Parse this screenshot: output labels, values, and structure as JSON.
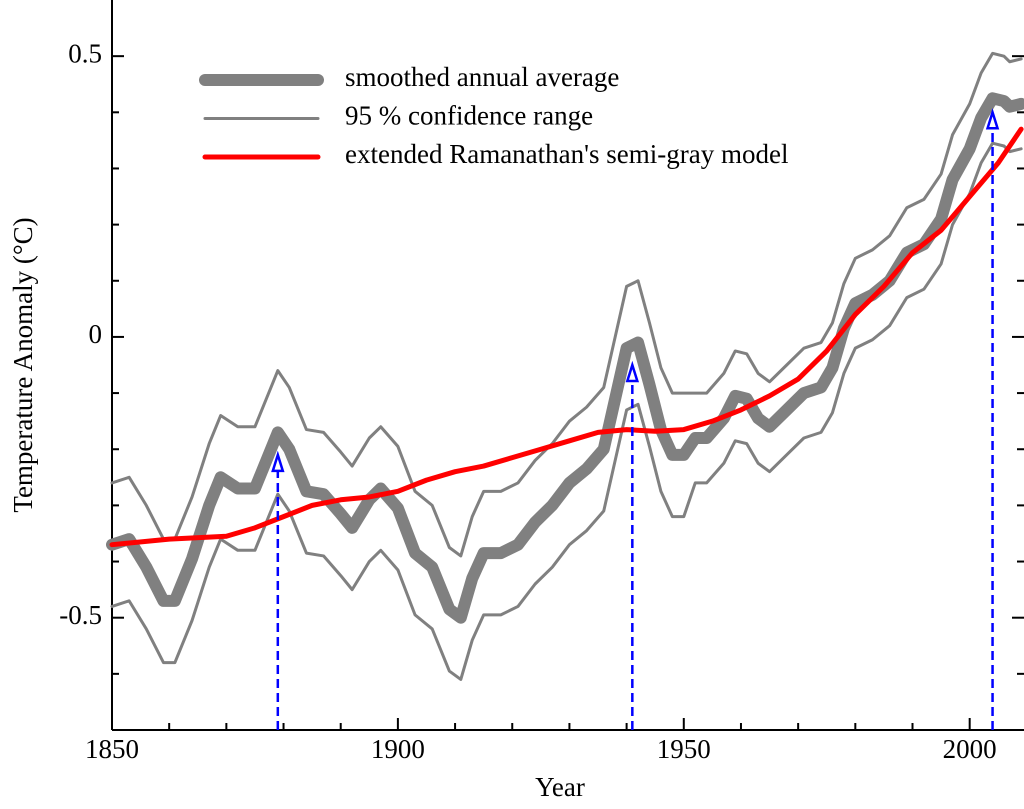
{
  "chart_data": {
    "type": "line",
    "xlabel": "Year",
    "ylabel": "Temperature Anomaly (°C)",
    "xlim": [
      1850,
      2009.5
    ],
    "ylim": [
      -0.7,
      0.6
    ],
    "xticks": [
      1850,
      1900,
      1950,
      2000
    ],
    "yticks": [
      -0.5,
      0,
      0.5
    ],
    "xminor_ticks": [
      1860,
      1870,
      1880,
      1890,
      1910,
      1920,
      1930,
      1940,
      1960,
      1970,
      1980,
      1990
    ],
    "yminor_ticks": [
      -0.6,
      -0.4,
      -0.3,
      -0.2,
      -0.1,
      0.1,
      0.2,
      0.3,
      0.4
    ],
    "series": [
      {
        "name": "smoothed annual average",
        "color": "#808080",
        "width": 12,
        "x": [
          1850,
          1853,
          1856,
          1859,
          1861,
          1864,
          1867,
          1869,
          1872,
          1875,
          1877,
          1879,
          1881,
          1884,
          1887,
          1890,
          1892,
          1895,
          1897,
          1900,
          1903,
          1906,
          1909,
          1911,
          1913,
          1915,
          1918,
          1921,
          1924,
          1927,
          1930,
          1933,
          1936,
          1938,
          1940,
          1942,
          1944,
          1946,
          1948,
          1950,
          1952,
          1954,
          1957,
          1959,
          1961,
          1963,
          1965,
          1968,
          1971,
          1974,
          1976,
          1978,
          1980,
          1983,
          1986,
          1989,
          1992,
          1995,
          1997,
          2000,
          2002,
          2004,
          2006,
          2007,
          2009
        ],
        "values": [
          -0.37,
          -0.36,
          -0.41,
          -0.47,
          -0.47,
          -0.395,
          -0.3,
          -0.25,
          -0.27,
          -0.27,
          -0.22,
          -0.17,
          -0.2,
          -0.275,
          -0.28,
          -0.315,
          -0.34,
          -0.29,
          -0.27,
          -0.305,
          -0.385,
          -0.41,
          -0.485,
          -0.5,
          -0.43,
          -0.385,
          -0.385,
          -0.37,
          -0.33,
          -0.3,
          -0.26,
          -0.235,
          -0.2,
          -0.11,
          -0.02,
          -0.01,
          -0.085,
          -0.165,
          -0.21,
          -0.21,
          -0.18,
          -0.18,
          -0.145,
          -0.105,
          -0.11,
          -0.145,
          -0.16,
          -0.13,
          -0.1,
          -0.09,
          -0.055,
          0.015,
          0.06,
          0.075,
          0.1,
          0.15,
          0.165,
          0.21,
          0.28,
          0.335,
          0.39,
          0.425,
          0.42,
          0.41,
          0.415
        ]
      },
      {
        "name": "95 % confidence range",
        "color": "#808080",
        "width": 3,
        "x": [
          1850,
          1853,
          1856,
          1859,
          1861,
          1864,
          1867,
          1869,
          1872,
          1875,
          1877,
          1879,
          1881,
          1884,
          1887,
          1890,
          1892,
          1895,
          1897,
          1900,
          1903,
          1906,
          1909,
          1911,
          1913,
          1915,
          1918,
          1921,
          1924,
          1927,
          1930,
          1933,
          1936,
          1938,
          1940,
          1942,
          1944,
          1946,
          1948,
          1950,
          1952,
          1954,
          1957,
          1959,
          1961,
          1963,
          1965,
          1968,
          1971,
          1974,
          1976,
          1978,
          1980,
          1983,
          1986,
          1989,
          1992,
          1995,
          1997,
          2000,
          2002,
          2004,
          2006,
          2007,
          2009
        ],
        "upper": [
          -0.26,
          -0.25,
          -0.3,
          -0.36,
          -0.36,
          -0.285,
          -0.19,
          -0.14,
          -0.16,
          -0.16,
          -0.11,
          -0.06,
          -0.09,
          -0.165,
          -0.17,
          -0.205,
          -0.23,
          -0.18,
          -0.16,
          -0.195,
          -0.275,
          -0.3,
          -0.375,
          -0.39,
          -0.32,
          -0.275,
          -0.275,
          -0.26,
          -0.22,
          -0.19,
          -0.15,
          -0.125,
          -0.09,
          0.0,
          0.09,
          0.1,
          0.025,
          -0.055,
          -0.1,
          -0.1,
          -0.1,
          -0.1,
          -0.065,
          -0.025,
          -0.03,
          -0.065,
          -0.08,
          -0.05,
          -0.02,
          -0.01,
          0.025,
          0.095,
          0.14,
          0.155,
          0.18,
          0.23,
          0.245,
          0.29,
          0.36,
          0.415,
          0.47,
          0.505,
          0.5,
          0.49,
          0.495
        ],
        "lower": [
          -0.48,
          -0.47,
          -0.52,
          -0.58,
          -0.58,
          -0.505,
          -0.41,
          -0.36,
          -0.38,
          -0.38,
          -0.33,
          -0.28,
          -0.31,
          -0.385,
          -0.39,
          -0.425,
          -0.45,
          -0.4,
          -0.38,
          -0.415,
          -0.495,
          -0.52,
          -0.595,
          -0.61,
          -0.54,
          -0.495,
          -0.495,
          -0.48,
          -0.44,
          -0.41,
          -0.37,
          -0.345,
          -0.31,
          -0.22,
          -0.13,
          -0.12,
          -0.195,
          -0.275,
          -0.32,
          -0.32,
          -0.26,
          -0.26,
          -0.225,
          -0.185,
          -0.19,
          -0.225,
          -0.24,
          -0.21,
          -0.18,
          -0.17,
          -0.135,
          -0.065,
          -0.02,
          -0.005,
          0.02,
          0.07,
          0.085,
          0.13,
          0.2,
          0.255,
          0.31,
          0.345,
          0.34,
          0.33,
          0.335
        ]
      },
      {
        "name": "extended Ramanathan's semi-gray model",
        "color": "#ff0000",
        "width": 5,
        "x": [
          1850,
          1860,
          1870,
          1875,
          1880,
          1885,
          1890,
          1895,
          1900,
          1905,
          1910,
          1915,
          1920,
          1925,
          1930,
          1935,
          1940,
          1945,
          1950,
          1955,
          1960,
          1965,
          1970,
          1975,
          1980,
          1985,
          1990,
          1995,
          2000,
          2005,
          2009
        ],
        "values": [
          -0.37,
          -0.36,
          -0.355,
          -0.34,
          -0.32,
          -0.3,
          -0.29,
          -0.285,
          -0.275,
          -0.255,
          -0.24,
          -0.23,
          -0.215,
          -0.2,
          -0.185,
          -0.17,
          -0.165,
          -0.168,
          -0.165,
          -0.15,
          -0.13,
          -0.105,
          -0.075,
          -0.025,
          0.04,
          0.09,
          0.15,
          0.19,
          0.25,
          0.31,
          0.37
        ]
      }
    ],
    "arrows": [
      {
        "x": 1879,
        "y": -0.21
      },
      {
        "x": 1941,
        "y": -0.05
      },
      {
        "x": 2004,
        "y": 0.4
      }
    ],
    "arrow_color": "#0000ff"
  }
}
